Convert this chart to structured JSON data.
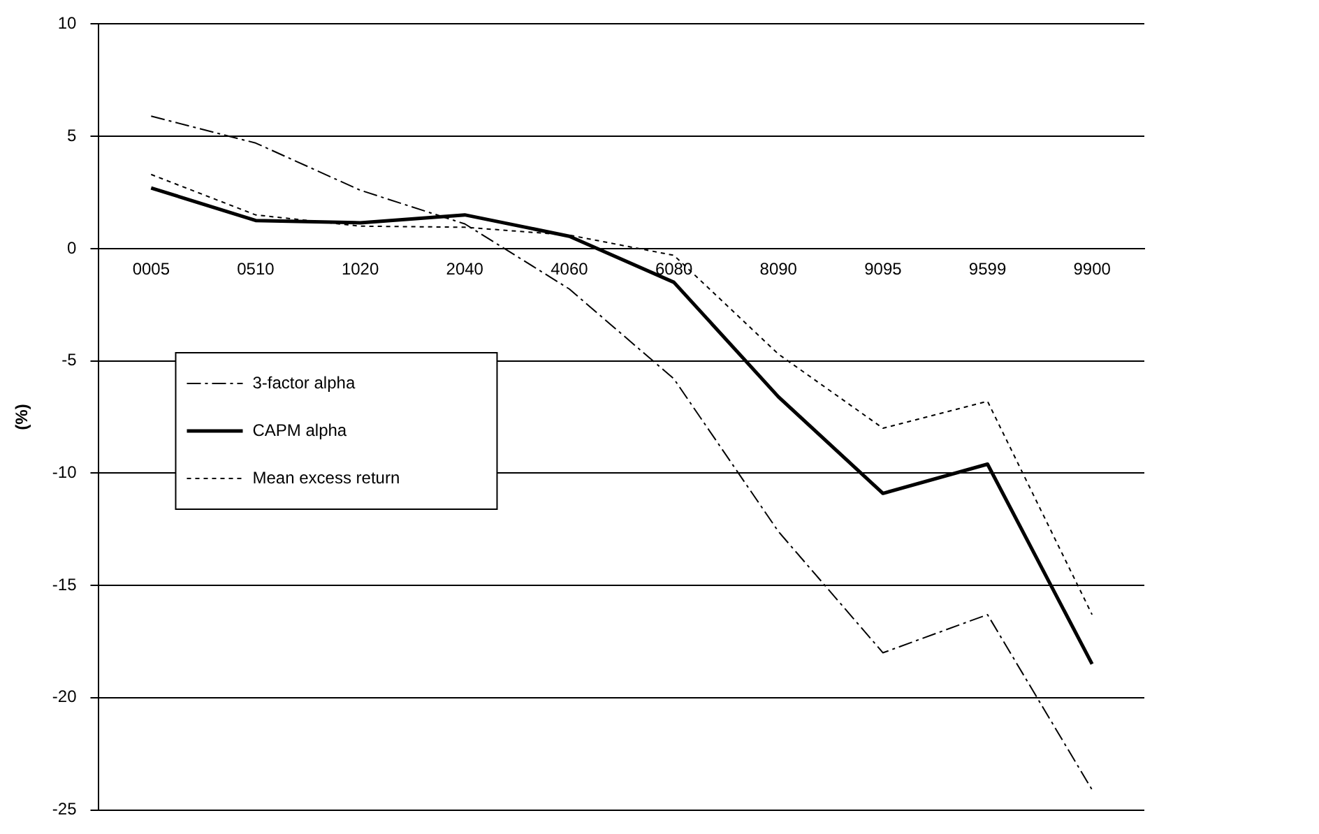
{
  "chart_data": {
    "type": "line",
    "ylabel": "(%)",
    "categories": [
      "0005",
      "0510",
      "1020",
      "2040",
      "4060",
      "6080",
      "8090",
      "9095",
      "9599",
      "9900"
    ],
    "series": [
      {
        "name": "3-factor alpha",
        "color": "#000000",
        "line_style": "dashed",
        "values": [
          5.9,
          4.7,
          2.6,
          1.1,
          -1.8,
          -5.8,
          -12.6,
          -18.0,
          -16.3,
          -24.1
        ]
      },
      {
        "name": "CAPM alpha",
        "color": "#000000",
        "line_style": "solid",
        "values": [
          2.7,
          1.25,
          1.15,
          1.5,
          0.55,
          -1.5,
          -6.6,
          -10.9,
          -9.6,
          -18.5
        ]
      },
      {
        "name": "Mean excess return",
        "color": "#000000",
        "line_style": "dotted",
        "values": [
          3.3,
          1.5,
          1.0,
          0.95,
          0.6,
          -0.3,
          -4.7,
          -8.0,
          -6.8,
          -16.3
        ]
      }
    ],
    "ylim": [
      -25,
      10
    ],
    "yticks": [
      -25,
      -20,
      -15,
      -10,
      -5,
      0,
      5,
      10
    ],
    "grid": "y",
    "legend": "left",
    "marker": "none"
  }
}
